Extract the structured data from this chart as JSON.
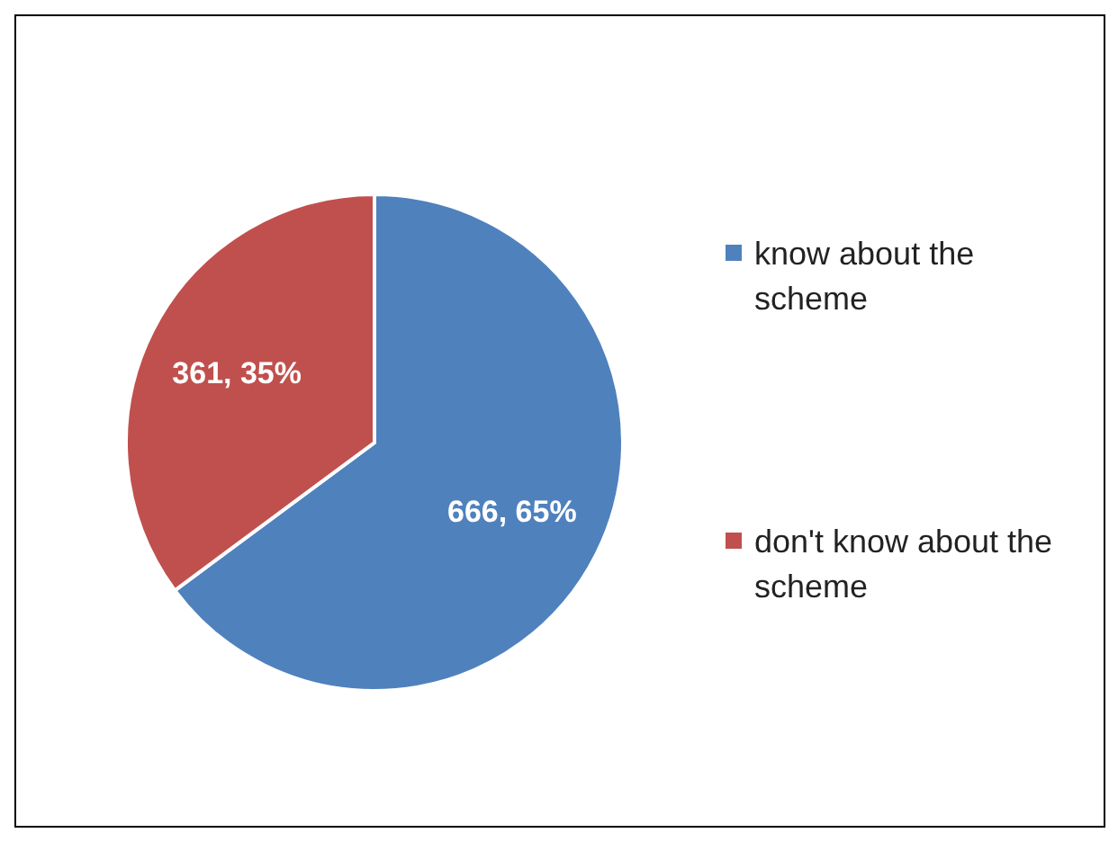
{
  "chart_data": {
    "type": "pie",
    "categories": [
      "know about the scheme",
      "don't know about the scheme"
    ],
    "values": [
      666,
      361
    ],
    "colors": [
      "#4f81bd",
      "#c0504d"
    ],
    "value_labels": [
      "666, 65%",
      "361, 35%"
    ],
    "legend": "right"
  }
}
